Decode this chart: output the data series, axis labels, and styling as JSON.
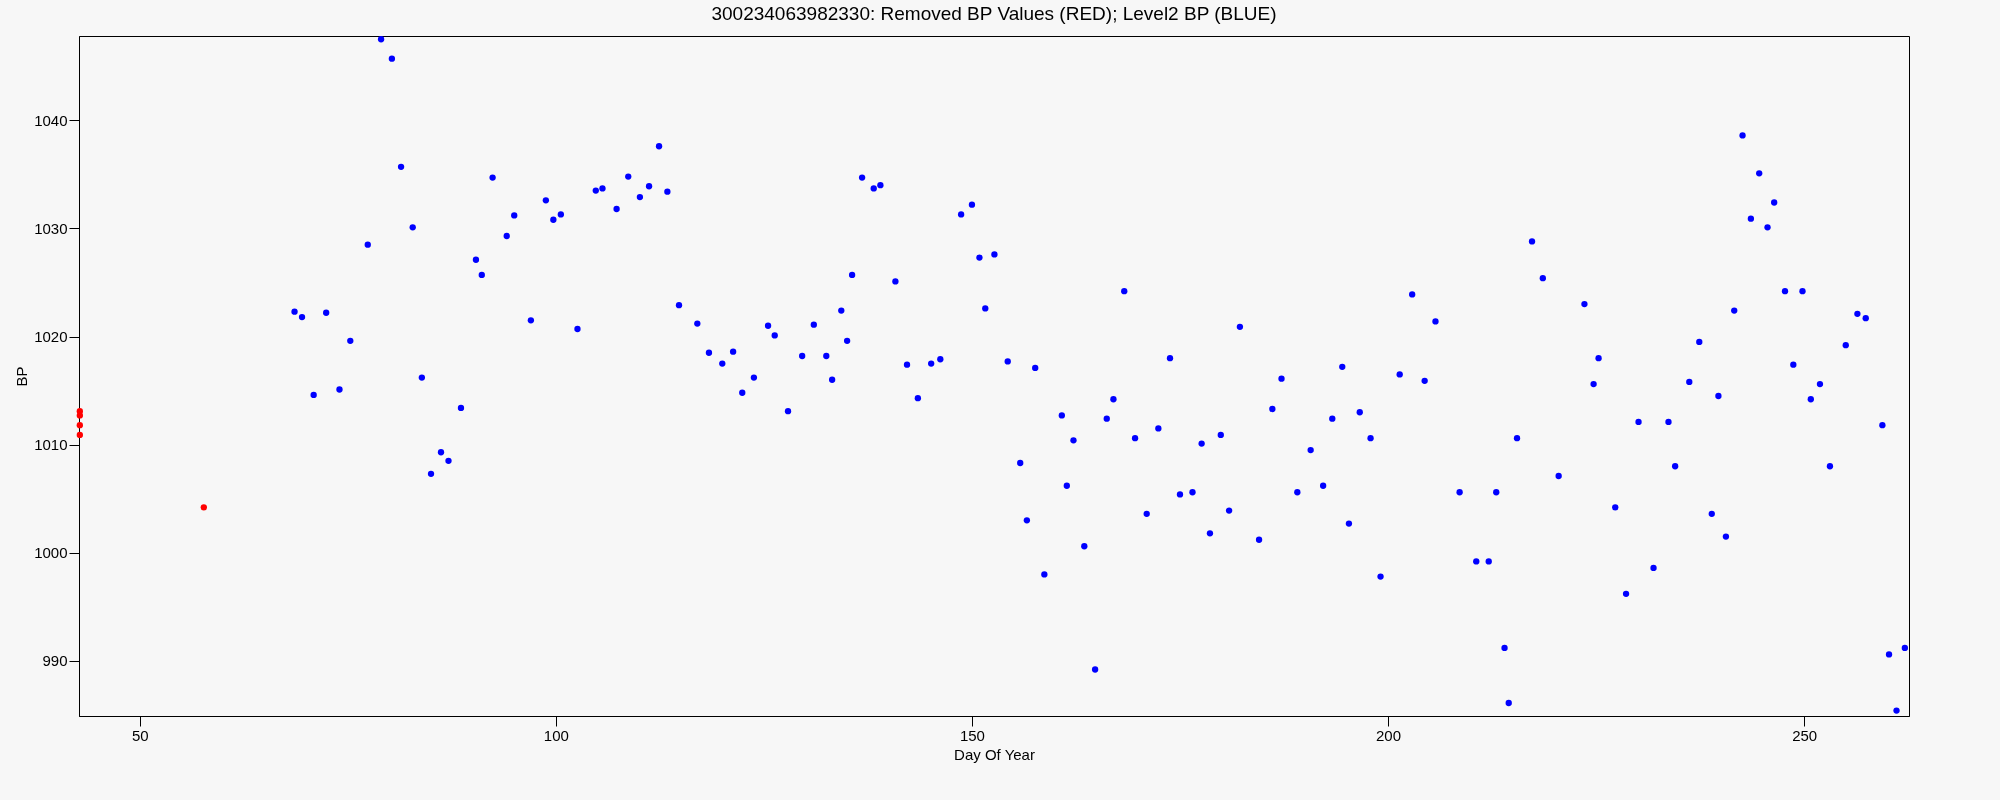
{
  "chart_data": {
    "type": "scatter",
    "title": "300234063982330: Removed BP Values (RED); Level2 BP (BLUE)",
    "xlabel": "Day Of Year",
    "ylabel": "BP",
    "xlim": [
      42.7,
      262.6
    ],
    "ylim": [
      984.9,
      1047.8
    ],
    "xticks": [
      50,
      100,
      150,
      200,
      250
    ],
    "yticks": [
      990,
      1000,
      1010,
      1020,
      1030,
      1040
    ],
    "grid": false,
    "legend": false,
    "marker": "circle",
    "series": [
      {
        "color": "#ff0000",
        "x": [
          42.8,
          42.8,
          42.8,
          42.8,
          57.7
        ],
        "values": [
          1013.1,
          1012.7,
          1011.8,
          1010.9,
          1004.2
        ]
      },
      {
        "color": "#0000ff",
        "x": [
          68.6,
          69.5,
          70.9,
          72.4,
          74.0,
          75.3,
          77.4,
          79.0,
          80.3,
          81.4,
          82.8,
          83.9,
          85.0,
          86.2,
          87.1,
          88.6,
          90.4,
          91.1,
          92.4,
          94.1,
          95.0,
          97.0,
          98.8,
          99.7,
          100.6,
          102.6,
          104.8,
          105.6,
          107.3,
          108.7,
          110.1,
          111.2,
          112.4,
          113.4,
          114.8,
          117.0,
          118.4,
          120.0,
          121.3,
          122.4,
          123.8,
          125.5,
          126.3,
          127.9,
          129.6,
          131.0,
          132.5,
          133.2,
          134.3,
          135.0,
          135.6,
          136.8,
          138.2,
          139.0,
          140.8,
          142.2,
          143.5,
          145.1,
          146.2,
          148.7,
          150.0,
          150.9,
          151.6,
          152.7,
          154.3,
          155.8,
          156.6,
          157.6,
          158.7,
          160.8,
          161.4,
          162.2,
          163.5,
          164.8,
          166.2,
          167.0,
          168.3,
          169.6,
          171.0,
          172.4,
          173.8,
          175.0,
          176.5,
          177.6,
          178.6,
          179.9,
          180.9,
          182.2,
          184.5,
          186.1,
          187.2,
          189.1,
          190.7,
          192.2,
          193.3,
          194.5,
          195.3,
          196.6,
          197.9,
          199.1,
          201.4,
          202.9,
          204.4,
          205.7,
          208.6,
          210.6,
          212.1,
          213.0,
          214.0,
          214.5,
          215.5,
          217.3,
          218.6,
          220.5,
          223.6,
          224.7,
          225.3,
          227.3,
          228.6,
          230.1,
          231.9,
          233.7,
          234.5,
          236.2,
          237.4,
          238.9,
          239.7,
          240.6,
          241.6,
          242.6,
          243.6,
          244.6,
          245.6,
          246.4,
          247.7,
          248.7,
          249.8,
          250.8,
          251.9,
          253.1,
          255.0,
          256.4,
          257.4,
          259.4,
          260.2,
          261.1,
          262.1
        ],
        "values": [
          1022.3,
          1021.8,
          1014.6,
          1022.2,
          1015.1,
          1019.6,
          1028.5,
          1047.5,
          1045.7,
          1035.7,
          1030.1,
          1016.2,
          1007.3,
          1009.3,
          1008.5,
          1013.4,
          1027.1,
          1025.7,
          1034.7,
          1029.3,
          1031.2,
          1021.5,
          1032.6,
          1030.8,
          1031.3,
          1020.7,
          1033.5,
          1033.7,
          1031.8,
          1034.8,
          1032.9,
          1033.9,
          1037.6,
          1033.4,
          1022.9,
          1021.2,
          1018.5,
          1017.5,
          1018.6,
          1014.8,
          1016.2,
          1021.0,
          1020.1,
          1013.1,
          1018.2,
          1021.1,
          1018.2,
          1016.0,
          1022.4,
          1019.6,
          1025.7,
          1034.7,
          1033.7,
          1034.0,
          1025.1,
          1017.4,
          1014.3,
          1017.5,
          1017.9,
          1031.3,
          1032.2,
          1027.3,
          1022.6,
          1027.6,
          1017.7,
          1008.3,
          1003.0,
          1017.1,
          998.0,
          1012.7,
          1006.2,
          1010.4,
          1000.6,
          989.2,
          1012.4,
          1014.2,
          1024.2,
          1010.6,
          1003.6,
          1011.5,
          1018.0,
          1005.4,
          1005.6,
          1010.1,
          1001.8,
          1010.9,
          1003.9,
          1020.9,
          1001.2,
          1013.3,
          1016.1,
          1005.6,
          1009.5,
          1006.2,
          1012.4,
          1017.2,
          1002.7,
          1013.0,
          1010.6,
          997.8,
          1016.5,
          1023.9,
          1015.9,
          1021.4,
          1005.6,
          999.2,
          999.2,
          1005.6,
          991.2,
          986.1,
          1010.6,
          1028.8,
          1025.4,
          1007.1,
          1023.0,
          1015.6,
          1018.0,
          1004.2,
          996.2,
          1012.1,
          998.6,
          1012.1,
          1008.0,
          1015.8,
          1019.5,
          1003.6,
          1014.5,
          1001.5,
          1022.4,
          1038.6,
          1030.9,
          1035.1,
          1030.1,
          1032.4,
          1024.2,
          1017.4,
          1024.2,
          1014.2,
          1015.6,
          1008.0,
          1019.2,
          1022.1,
          1021.7,
          1011.8,
          990.6,
          985.4,
          991.2
        ]
      }
    ]
  }
}
